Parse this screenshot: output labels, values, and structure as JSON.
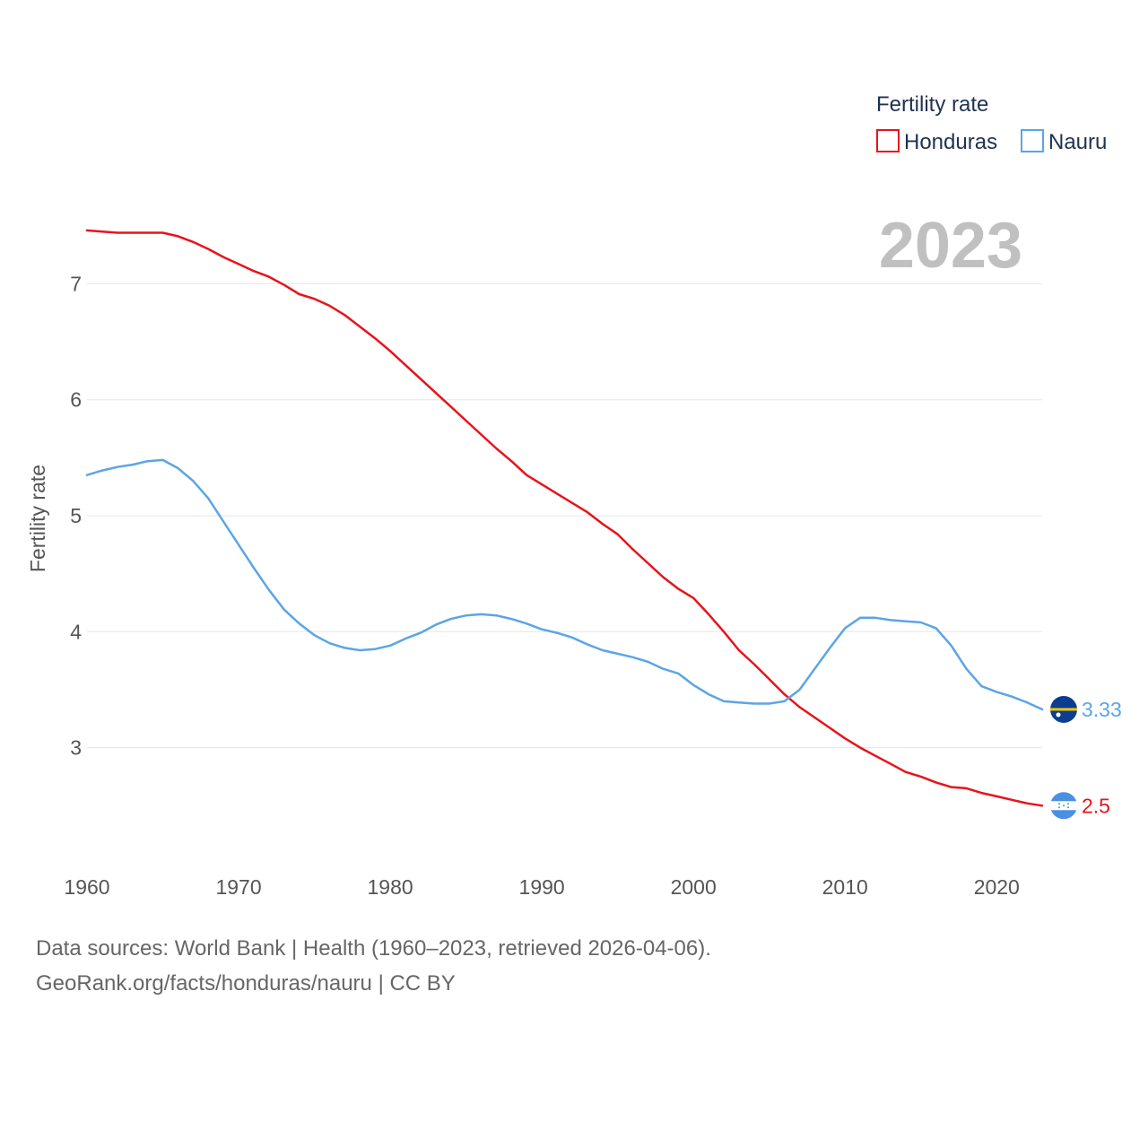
{
  "chart_data": {
    "type": "line",
    "ylabel": "Fertility rate",
    "xlabel": "",
    "xlim": [
      1960,
      2023
    ],
    "ylim": [
      2.1,
      7.9
    ],
    "x_ticks": [
      "1960",
      "1970",
      "1980",
      "1990",
      "2000",
      "2010",
      "2020"
    ],
    "y_ticks": [
      "3",
      "4",
      "5",
      "6",
      "7"
    ],
    "grid": true,
    "legend": {
      "title": "Fertility rate",
      "position": "top-right"
    },
    "year_label": "2023",
    "x": [
      1960,
      1961,
      1962,
      1963,
      1964,
      1965,
      1966,
      1967,
      1968,
      1969,
      1970,
      1971,
      1972,
      1973,
      1974,
      1975,
      1976,
      1977,
      1978,
      1979,
      1980,
      1981,
      1982,
      1983,
      1984,
      1985,
      1986,
      1987,
      1988,
      1989,
      1990,
      1991,
      1992,
      1993,
      1994,
      1995,
      1996,
      1997,
      1998,
      1999,
      2000,
      2001,
      2002,
      2003,
      2004,
      2005,
      2006,
      2007,
      2008,
      2009,
      2010,
      2011,
      2012,
      2013,
      2014,
      2015,
      2016,
      2017,
      2018,
      2019,
      2020,
      2021,
      2022,
      2023
    ],
    "series": [
      {
        "name": "Honduras",
        "color": "#e8131b",
        "end_label": "2.5",
        "flag": "honduras-flag-icon",
        "values": [
          7.46,
          7.45,
          7.44,
          7.44,
          7.44,
          7.44,
          7.41,
          7.36,
          7.3,
          7.23,
          7.17,
          7.11,
          7.06,
          6.99,
          6.91,
          6.87,
          6.81,
          6.73,
          6.63,
          6.53,
          6.42,
          6.3,
          6.18,
          6.06,
          5.94,
          5.82,
          5.7,
          5.58,
          5.47,
          5.35,
          5.27,
          5.19,
          5.11,
          5.03,
          4.93,
          4.84,
          4.71,
          4.59,
          4.47,
          4.37,
          4.29,
          4.15,
          4.0,
          3.84,
          3.72,
          3.59,
          3.46,
          3.35,
          3.26,
          3.17,
          3.08,
          3.0,
          2.93,
          2.86,
          2.79,
          2.75,
          2.7,
          2.66,
          2.65,
          2.61,
          2.58,
          2.55,
          2.52,
          2.5
        ]
      },
      {
        "name": "Nauru",
        "color": "#5ba5e5",
        "end_label": "3.33",
        "flag": "nauru-flag-icon",
        "values": [
          5.35,
          5.39,
          5.42,
          5.44,
          5.47,
          5.48,
          5.41,
          5.3,
          5.15,
          4.95,
          4.75,
          4.55,
          4.36,
          4.19,
          4.07,
          3.97,
          3.9,
          3.86,
          3.84,
          3.85,
          3.88,
          3.94,
          3.99,
          4.06,
          4.11,
          4.14,
          4.15,
          4.14,
          4.11,
          4.07,
          4.02,
          3.99,
          3.95,
          3.89,
          3.84,
          3.81,
          3.78,
          3.74,
          3.68,
          3.64,
          3.54,
          3.46,
          3.4,
          3.39,
          3.38,
          3.38,
          3.4,
          3.5,
          3.68,
          3.86,
          4.03,
          4.12,
          4.12,
          4.1,
          4.09,
          4.08,
          4.03,
          3.88,
          3.68,
          3.53,
          3.48,
          3.44,
          3.39,
          3.33
        ]
      }
    ]
  },
  "footer": {
    "line1": "Data sources: World Bank | Health (1960–2023, retrieved 2026-04-06).",
    "line2": "GeoRank.org/facts/honduras/nauru | CC BY"
  }
}
